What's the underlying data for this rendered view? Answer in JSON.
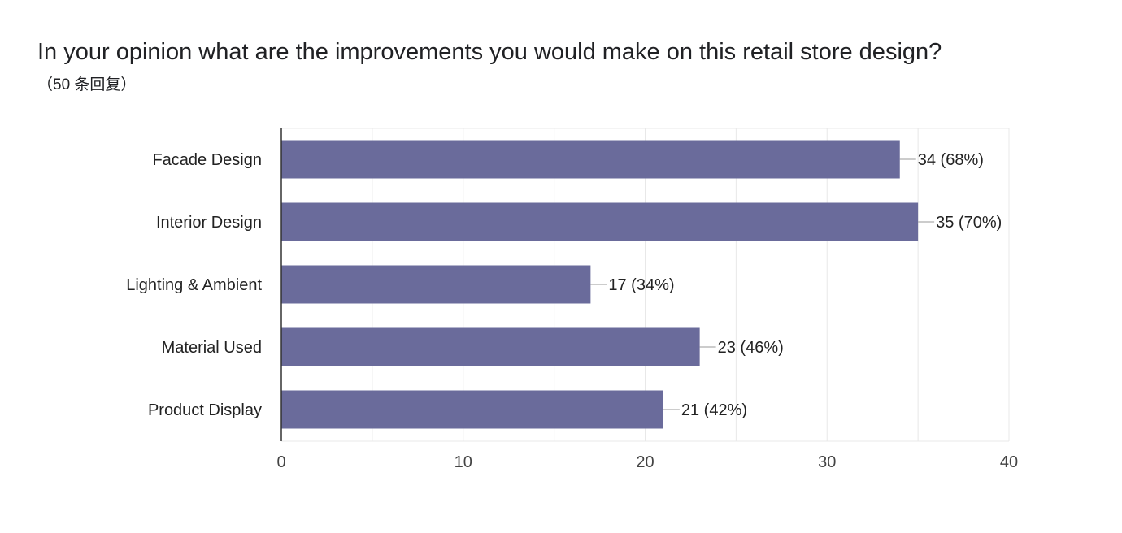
{
  "question": {
    "title": "In your opinion what are the improvements you would make on this retail store design?",
    "response_count": "（50 条回复）"
  },
  "colors": {
    "bar": "#6a6b9b",
    "grid": "#e8e8e8",
    "axis": "#333333",
    "leader": "#9a9a9a"
  },
  "chart_data": {
    "type": "bar",
    "orientation": "horizontal",
    "categories": [
      "Facade Design",
      "Interior Design",
      "Lighting & Ambient",
      "Material Used",
      "Product Display"
    ],
    "values": [
      34,
      35,
      17,
      23,
      21
    ],
    "data_labels": [
      "34 (68%)",
      "35 (70%)",
      "17 (34%)",
      "23 (46%)",
      "21 (42%)"
    ],
    "xlim": [
      0,
      40
    ],
    "x_ticks": [
      0,
      10,
      20,
      30,
      40
    ],
    "grid": true,
    "legend": "none"
  }
}
